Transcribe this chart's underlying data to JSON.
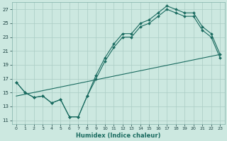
{
  "xlabel": "Humidex (Indice chaleur)",
  "bg_color": "#cce8e0",
  "grid_color": "#aaccc4",
  "line_color": "#1a6b60",
  "xlim": [
    -0.5,
    23.5
  ],
  "ylim": [
    10.5,
    28.0
  ],
  "yticks": [
    11,
    13,
    15,
    17,
    19,
    21,
    23,
    25,
    27
  ],
  "xticks": [
    0,
    1,
    2,
    3,
    4,
    5,
    6,
    7,
    8,
    9,
    10,
    11,
    12,
    13,
    14,
    15,
    16,
    17,
    18,
    19,
    20,
    21,
    22,
    23
  ],
  "line1_x": [
    0,
    1,
    2,
    3,
    4,
    5,
    6,
    7,
    8,
    9,
    10,
    11,
    12,
    13,
    14,
    15,
    16,
    17,
    18,
    19,
    20,
    21,
    22,
    23
  ],
  "line1_y": [
    16.5,
    15.0,
    14.3,
    14.5,
    13.5,
    14.0,
    11.5,
    11.5,
    14.5,
    17.5,
    20.0,
    22.0,
    23.5,
    23.5,
    25.0,
    25.5,
    26.5,
    27.5,
    27.0,
    26.5,
    26.5,
    24.5,
    23.5,
    20.5
  ],
  "line2_x": [
    0,
    1,
    2,
    3,
    4,
    5,
    6,
    7,
    8,
    9,
    10,
    11,
    12,
    13,
    14,
    15,
    16,
    17,
    18,
    19,
    20,
    21,
    22,
    23
  ],
  "line2_y": [
    16.5,
    15.0,
    14.3,
    14.5,
    13.5,
    14.0,
    11.5,
    11.5,
    14.5,
    17.0,
    19.5,
    21.5,
    23.0,
    23.0,
    24.5,
    25.0,
    26.0,
    27.0,
    26.5,
    26.0,
    26.0,
    24.0,
    23.0,
    20.0
  ],
  "line3_x": [
    0,
    23
  ],
  "line3_y": [
    14.5,
    20.5
  ]
}
